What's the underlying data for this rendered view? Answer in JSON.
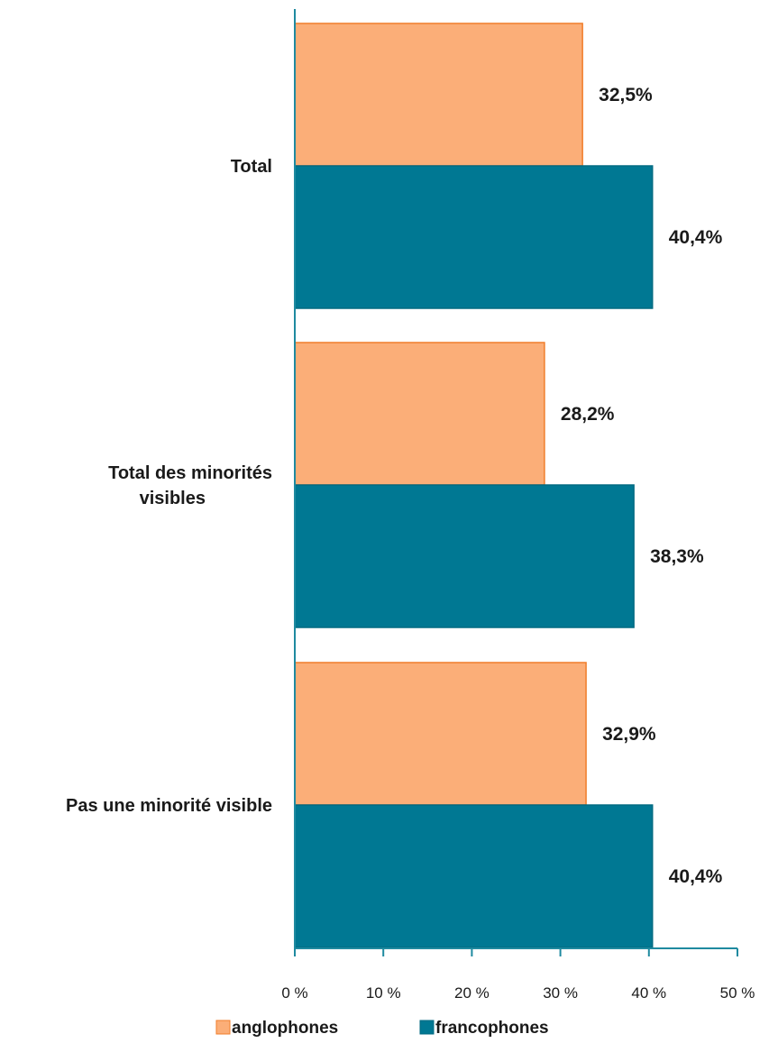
{
  "chart_data": {
    "type": "bar",
    "orientation": "horizontal",
    "categories": [
      "Total",
      "Total des minorités visibles",
      "Pas une minorité visible"
    ],
    "category_lines": [
      [
        "Total"
      ],
      [
        "Total des minorités",
        "visibles"
      ],
      [
        "Pas une minorité visible"
      ]
    ],
    "series": [
      {
        "name": "anglophones",
        "color": "#FBAE78",
        "border": "#F07D2A",
        "values": [
          32.5,
          28.2,
          32.9
        ],
        "labels": [
          "32,5%",
          "28,2%",
          "32,9%"
        ]
      },
      {
        "name": "francophones",
        "color": "#007893",
        "border": "#006A82",
        "values": [
          40.4,
          38.3,
          40.4
        ],
        "labels": [
          "40,4%",
          "38,3%",
          "40,4%"
        ]
      }
    ],
    "xlim": [
      0,
      50
    ],
    "xticks": [
      0,
      10,
      20,
      30,
      40,
      50
    ],
    "xtick_labels": [
      "0 %",
      "10 %",
      "20 %",
      "30 %",
      "40 %",
      "50 %"
    ],
    "axis_color": "#1F8AA0",
    "grid": false,
    "legend_position": "bottom",
    "title": "",
    "xlabel": "",
    "ylabel": ""
  }
}
